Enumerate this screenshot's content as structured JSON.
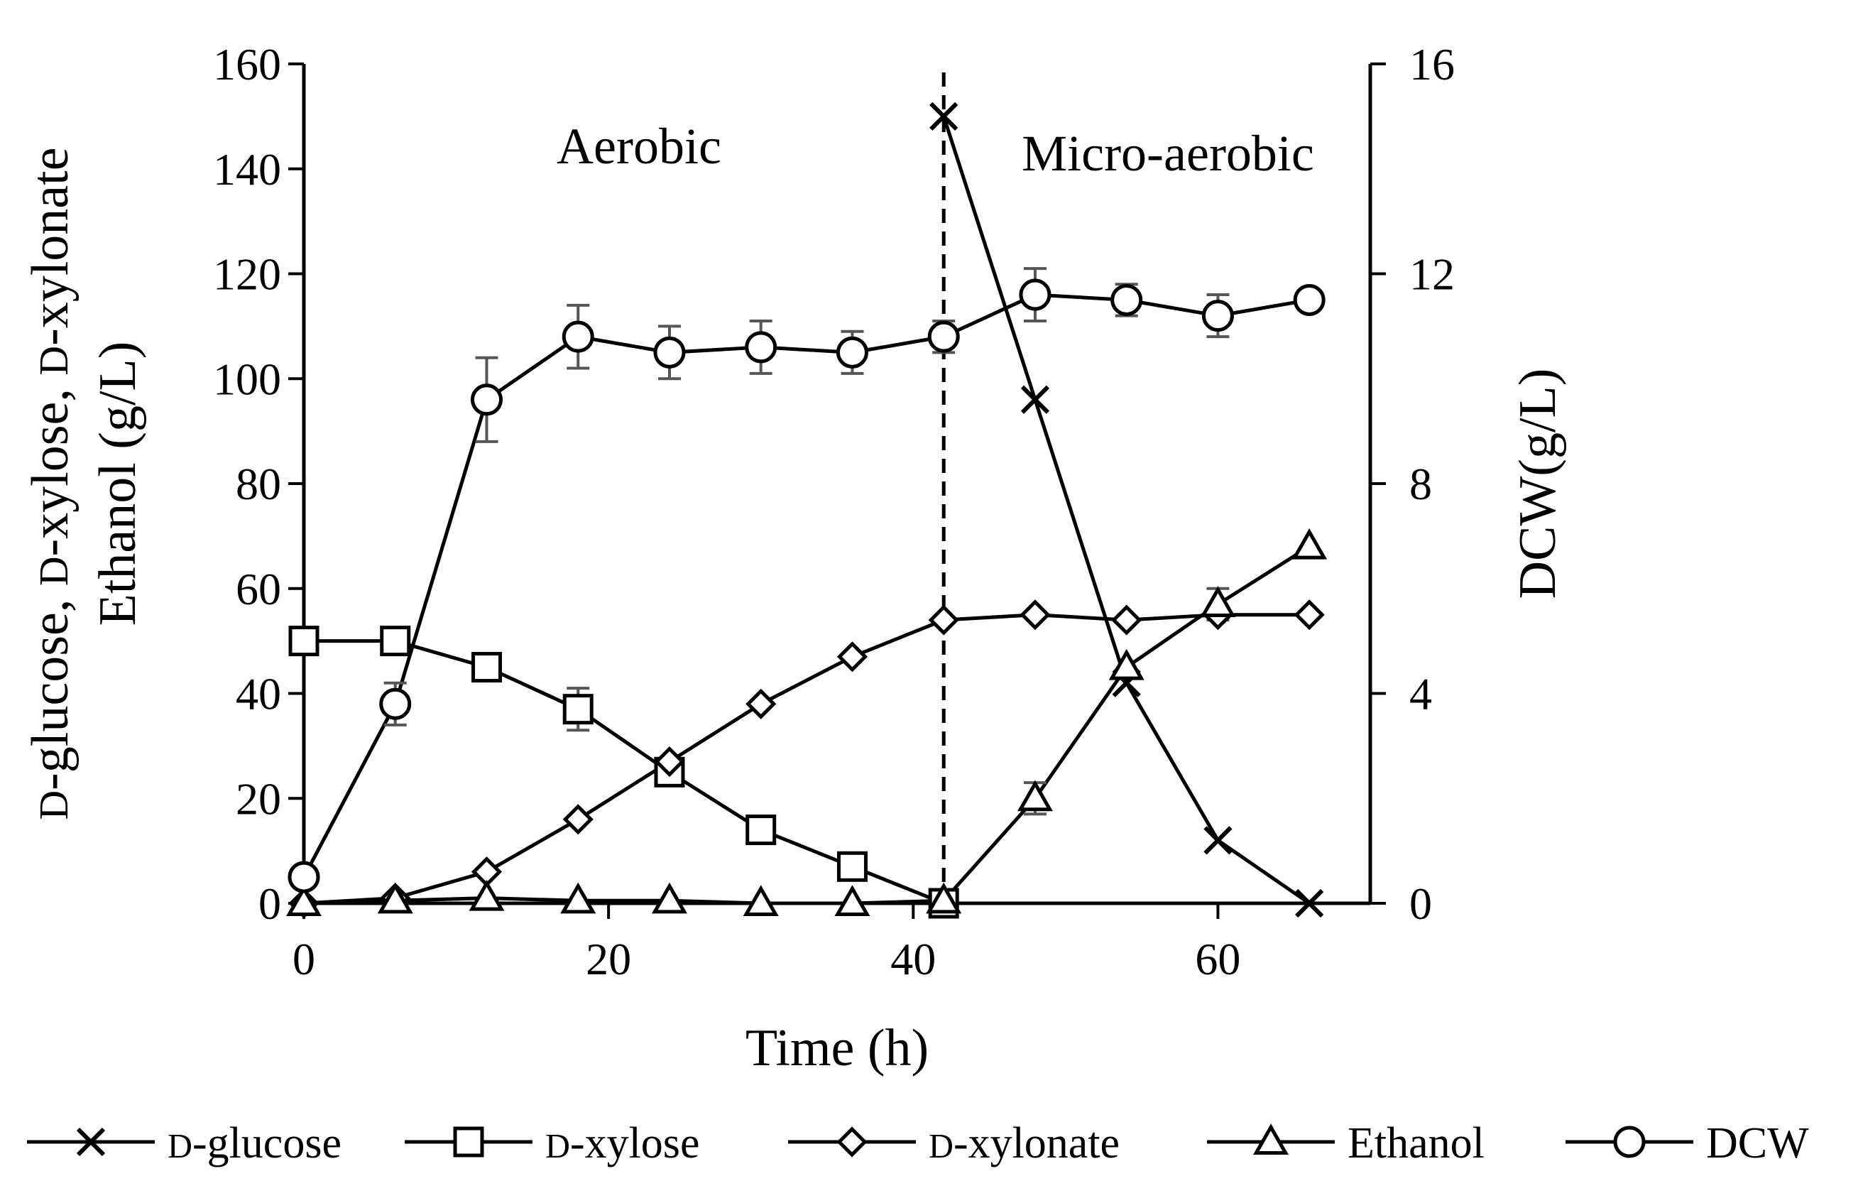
{
  "chart_data": {
    "type": "line",
    "xlabel": "Time (h)",
    "ylabel_left_line1": "D-glucose, D-xylose, D-xylonate",
    "ylabel_left_line2": "Ethanol (g/L)",
    "ylabel_right": "DCW(g/L)",
    "xlim": [
      0,
      70
    ],
    "xticks": [
      "0",
      "20",
      "40",
      "60"
    ],
    "ylim_left": [
      0,
      160
    ],
    "yticks_left": [
      "0",
      "20",
      "40",
      "60",
      "80",
      "100",
      "120",
      "140",
      "160"
    ],
    "ylim_right": [
      0,
      16
    ],
    "yticks_right": [
      "0",
      "4",
      "8",
      "12",
      "16"
    ],
    "phase_boundary_x": 42,
    "phase_labels": [
      "Aerobic",
      "Micro-aerobic"
    ],
    "series": [
      {
        "name": "D-glucose",
        "prefix": "D",
        "suffix": "-glucose",
        "marker": "x",
        "axis": "left",
        "x": [
          42,
          48,
          54,
          60,
          66
        ],
        "y": [
          150,
          96,
          42,
          12,
          0
        ]
      },
      {
        "name": "D-xylose",
        "prefix": "D",
        "suffix": "-xylose",
        "marker": "square",
        "axis": "left",
        "x": [
          0,
          6,
          12,
          18,
          24,
          30,
          36,
          42
        ],
        "y": [
          50,
          50,
          45,
          37,
          25,
          14,
          7,
          0
        ],
        "err": [
          0,
          0,
          0,
          4,
          0,
          0,
          0,
          0
        ]
      },
      {
        "name": "D-xylonate",
        "prefix": "D",
        "suffix": "-xylonate",
        "marker": "diamond",
        "axis": "left",
        "x": [
          0,
          6,
          12,
          18,
          24,
          30,
          36,
          42,
          48,
          54,
          60,
          66
        ],
        "y": [
          0,
          1,
          6,
          16,
          27,
          38,
          47,
          54,
          55,
          54,
          55,
          55
        ]
      },
      {
        "name": "Ethanol",
        "prefix": "",
        "suffix": "Ethanol",
        "marker": "triangle",
        "axis": "left",
        "x": [
          0,
          6,
          12,
          18,
          24,
          30,
          36,
          42,
          48,
          54,
          60,
          66
        ],
        "y": [
          0,
          0.5,
          1,
          0.5,
          0.5,
          0,
          0,
          0.5,
          20,
          45,
          57,
          68
        ],
        "err": [
          0,
          0,
          0,
          0,
          0,
          0,
          0,
          0,
          3,
          0,
          3,
          0
        ]
      },
      {
        "name": "DCW",
        "prefix": "",
        "suffix": "DCW",
        "marker": "circle",
        "axis": "right",
        "x": [
          0,
          6,
          12,
          18,
          24,
          30,
          36,
          42,
          48,
          54,
          60,
          66
        ],
        "y": [
          0.5,
          3.8,
          9.6,
          10.8,
          10.5,
          10.6,
          10.5,
          10.8,
          11.6,
          11.5,
          11.2,
          11.5
        ],
        "err": [
          0,
          0.4,
          0.8,
          0.6,
          0.5,
          0.5,
          0.4,
          0.3,
          0.5,
          0.3,
          0.4,
          0
        ]
      }
    ]
  }
}
